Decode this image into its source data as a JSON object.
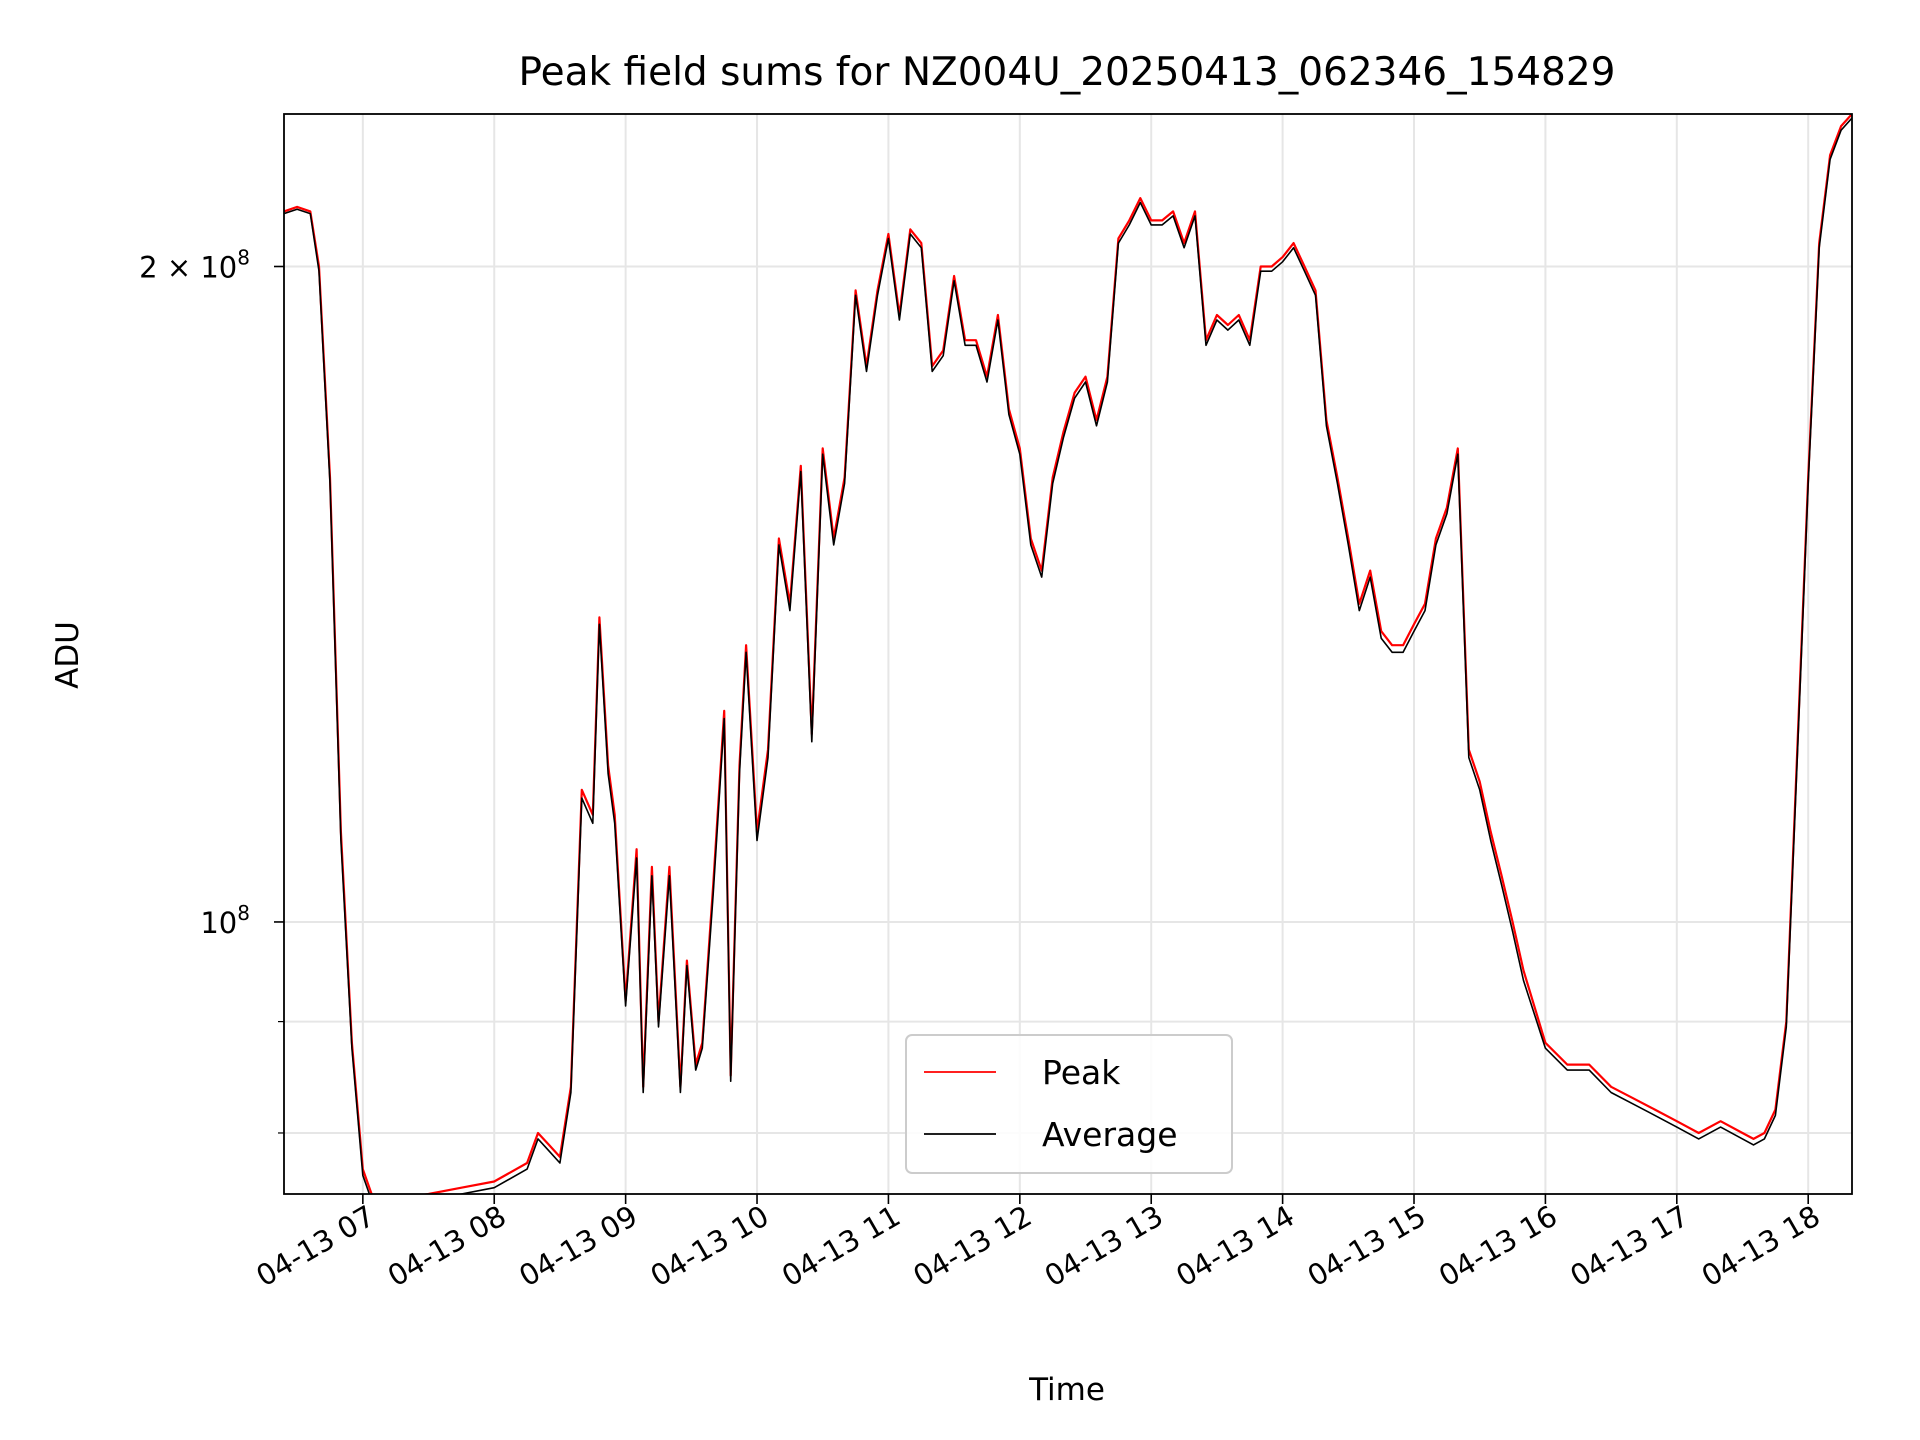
{
  "chart_data": {
    "type": "line",
    "title": "Peak field sums for NZ004U_20250413_062346_154829",
    "xlabel": "Time",
    "ylabel": "ADU",
    "yscale": "log",
    "xlim": [
      "2025-04-13 06:24",
      "2025-04-13 18:20"
    ],
    "ylim": [
      75000000,
      235000000
    ],
    "grid": true,
    "legend_position": "bottom-center",
    "x_ticks": [
      "04-13 07",
      "04-13 08",
      "04-13 09",
      "04-13 10",
      "04-13 11",
      "04-13 12",
      "04-13 13",
      "04-13 14",
      "04-13 15",
      "04-13 16",
      "04-13 17",
      "04-13 18"
    ],
    "y_ticks": [
      {
        "value": 100000000,
        "label": "10",
        "exp": "8"
      },
      {
        "value": 200000000,
        "label": "2 × 10",
        "exp": "8"
      }
    ],
    "y_minor_ticks": [
      80000000,
      90000000
    ],
    "x": [
      "06:24",
      "06:30",
      "06:36",
      "06:40",
      "06:45",
      "06:50",
      "06:55",
      "07:00",
      "07:05",
      "07:15",
      "07:30",
      "07:45",
      "08:00",
      "08:15",
      "08:20",
      "08:25",
      "08:30",
      "08:35",
      "08:40",
      "08:45",
      "08:48",
      "08:52",
      "08:55",
      "09:00",
      "09:05",
      "09:08",
      "09:12",
      "09:15",
      "09:20",
      "09:25",
      "09:28",
      "09:32",
      "09:35",
      "09:40",
      "09:45",
      "09:48",
      "09:52",
      "09:55",
      "10:00",
      "10:05",
      "10:10",
      "10:15",
      "10:20",
      "10:25",
      "10:30",
      "10:35",
      "10:40",
      "10:45",
      "10:50",
      "10:55",
      "11:00",
      "11:05",
      "11:10",
      "11:15",
      "11:20",
      "11:25",
      "11:30",
      "11:35",
      "11:40",
      "11:45",
      "11:50",
      "11:55",
      "12:00",
      "12:05",
      "12:10",
      "12:15",
      "12:20",
      "12:25",
      "12:30",
      "12:35",
      "12:40",
      "12:45",
      "12:50",
      "12:55",
      "13:00",
      "13:05",
      "13:10",
      "13:15",
      "13:20",
      "13:25",
      "13:30",
      "13:35",
      "13:40",
      "13:45",
      "13:50",
      "13:55",
      "14:00",
      "14:05",
      "14:10",
      "14:15",
      "14:20",
      "14:25",
      "14:30",
      "14:35",
      "14:40",
      "14:45",
      "14:50",
      "14:55",
      "15:00",
      "15:05",
      "15:10",
      "15:15",
      "15:20",
      "15:25",
      "15:30",
      "15:35",
      "15:40",
      "15:45",
      "15:50",
      "16:00",
      "16:10",
      "16:20",
      "16:30",
      "16:40",
      "16:50",
      "17:00",
      "17:10",
      "17:20",
      "17:30",
      "17:35",
      "17:40",
      "17:45",
      "17:50",
      "17:55",
      "18:00",
      "18:05",
      "18:10",
      "18:15",
      "18:20"
    ],
    "series": [
      {
        "name": "Peak",
        "color": "#ff0000",
        "values": [
          212,
          213,
          212,
          200,
          160,
          110,
          88,
          77,
          74.5,
          74.6,
          75.0,
          75.5,
          76.0,
          77.5,
          80,
          79,
          78,
          84,
          115,
          112,
          138,
          118,
          112,
          92,
          108,
          84,
          106,
          90,
          106,
          84,
          96,
          86,
          88,
          104,
          125,
          85,
          118,
          134,
          110,
          120,
          150,
          140,
          162,
          122,
          165,
          150,
          160,
          195,
          180,
          195,
          207,
          190,
          208,
          205,
          180,
          183,
          198,
          185,
          185,
          178,
          190,
          172,
          165,
          150,
          145,
          160,
          168,
          175,
          178,
          170,
          178,
          206,
          210,
          215,
          210,
          210,
          212,
          205,
          212,
          185,
          190,
          188,
          190,
          185,
          200,
          200,
          202,
          205,
          200,
          195,
          170,
          160,
          150,
          140,
          145,
          136,
          134,
          134,
          137,
          140,
          150,
          155,
          165,
          120,
          116,
          110,
          105,
          100,
          95,
          88,
          86,
          86,
          84,
          83,
          82,
          81,
          80,
          81,
          80,
          79.5,
          80,
          82,
          90,
          120,
          160,
          205,
          225,
          232,
          235
        ]
      },
      {
        "name": "Average",
        "color": "#000000",
        "values": [
          211.5,
          212.5,
          211.5,
          199,
          159,
          109,
          87.5,
          76.5,
          74,
          74.1,
          74.5,
          75.0,
          75.5,
          77,
          79.5,
          78.5,
          77.5,
          83.5,
          114,
          111,
          137,
          117,
          111,
          91.5,
          107,
          83.5,
          105,
          89.5,
          105,
          83.5,
          95.5,
          85.5,
          87.5,
          103,
          124,
          84.5,
          117,
          133,
          109,
          119,
          149,
          139,
          161,
          121,
          164,
          149,
          159,
          194,
          179,
          194,
          206,
          189,
          207,
          204,
          179,
          182,
          197,
          184,
          184,
          177,
          189,
          171,
          164,
          149,
          144,
          159,
          167,
          174,
          177,
          169,
          177,
          205,
          209,
          214,
          209,
          209,
          211,
          204,
          211,
          184,
          189,
          187,
          189,
          184,
          199,
          199,
          201,
          204,
          199,
          194,
          169,
          159,
          149,
          139,
          144,
          135,
          133,
          133,
          136,
          139,
          149,
          154,
          164,
          119,
          115,
          109,
          104,
          99,
          94,
          87.5,
          85.5,
          85.5,
          83.5,
          82.5,
          81.5,
          80.5,
          79.5,
          80.5,
          79.5,
          79,
          79.5,
          81.5,
          89.5,
          119,
          159,
          204,
          224,
          231,
          234
        ]
      }
    ],
    "values_unit_multiplier": 1000000
  }
}
